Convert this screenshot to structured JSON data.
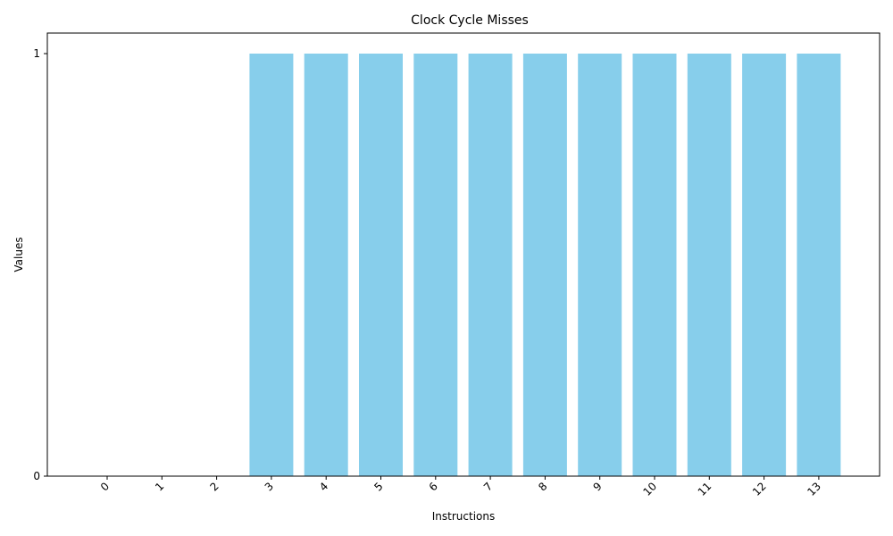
{
  "chart_data": {
    "type": "bar",
    "title": "Clock Cycle Misses",
    "xlabel": "Instructions",
    "ylabel": "Values",
    "categories": [
      "0",
      "1",
      "2",
      "3",
      "4",
      "5",
      "6",
      "7",
      "8",
      "9",
      "10",
      "11",
      "12",
      "13"
    ],
    "values": [
      0,
      0,
      0,
      1,
      1,
      1,
      1,
      1,
      1,
      1,
      1,
      1,
      1,
      1
    ],
    "ylim": [
      0,
      1
    ],
    "yticks": [
      "0",
      "1"
    ],
    "bar_color": "#87CEEB",
    "grid": false,
    "legend": "none"
  }
}
